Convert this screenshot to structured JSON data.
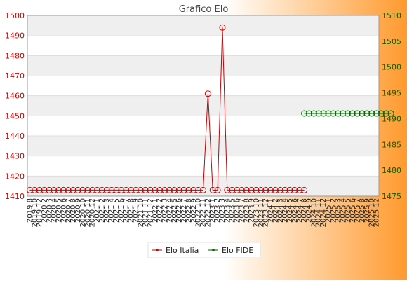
{
  "chart_data": {
    "type": "line",
    "title": "Grafico Elo",
    "x_labels": [
      "2019 8",
      "2019 10",
      "2019 12",
      "2020 2",
      "2020 3",
      "2020 4",
      "2020 5",
      "2020 6",
      "2020 7",
      "2020 8",
      "2020 9",
      "2020 10",
      "2020 11",
      "2020 12",
      "2021 1",
      "2021 2",
      "2021 3",
      "2021 4",
      "2021 5",
      "2021 6",
      "2021 7",
      "2021 8",
      "2021 9",
      "2021 10",
      "2021 11",
      "2021 12",
      "2022 1",
      "2022 2",
      "2022 3",
      "2022 4",
      "2022 5",
      "2022 6",
      "2022 7",
      "2022 8",
      "2022 9",
      "2022 10",
      "2022 11",
      "2022 12",
      "2023 1",
      "2023 2",
      "2023 3",
      "2023 4",
      "2023 5",
      "2023 6",
      "2023 7",
      "2023 8",
      "2023 9",
      "2023 10",
      "2023 11",
      "2023 12",
      "2024 1",
      "2024 2",
      "2024 3",
      "2024 4",
      "2024 5",
      "2024 6",
      "2024 7",
      "2024 8",
      "2024 9",
      "2024 10",
      "2024 11",
      "2024 12",
      "2025 1",
      "2025 2",
      "2025 3",
      "2025 4",
      "2025 5",
      "2025 6",
      "2025 7",
      "2025 8",
      "2025 9",
      "2025 10",
      "2025 12"
    ],
    "y_left": {
      "min": 1410,
      "max": 1500,
      "ticks": [
        1410,
        1420,
        1430,
        1440,
        1450,
        1460,
        1470,
        1480,
        1490,
        1500
      ],
      "color": "#cc0000"
    },
    "y_right": {
      "min": 1475,
      "max": 1510,
      "ticks": [
        1475,
        1480,
        1485,
        1490,
        1495,
        1500,
        1505,
        1510
      ],
      "color": "#006600"
    },
    "series": [
      {
        "name": "Elo Italia",
        "axis": "left",
        "color": "#cc0000",
        "values": [
          1413,
          1413,
          1413,
          1413,
          1413,
          1413,
          1413,
          1413,
          1413,
          1413,
          1413,
          1413,
          1413,
          1413,
          1413,
          1413,
          1413,
          1413,
          1413,
          1413,
          1413,
          1413,
          1413,
          1413,
          1413,
          1413,
          1413,
          1413,
          1413,
          1413,
          1413,
          1413,
          1413,
          1413,
          1413,
          1413,
          1413,
          1461,
          1413,
          1413,
          1494,
          1413,
          1413,
          1413,
          1413,
          1413,
          1413,
          1413,
          1413,
          1413,
          1413,
          1413,
          1413,
          1413,
          1413,
          1413,
          1413,
          1413,
          null,
          null,
          null,
          null,
          null,
          null,
          null,
          null,
          null,
          null,
          null,
          null,
          null,
          null,
          null
        ]
      },
      {
        "name": "Elo FIDE",
        "axis": "right",
        "color": "#006600",
        "values": [
          null,
          null,
          null,
          null,
          null,
          null,
          null,
          null,
          null,
          null,
          null,
          null,
          null,
          null,
          null,
          null,
          null,
          null,
          null,
          null,
          null,
          null,
          null,
          null,
          null,
          null,
          null,
          null,
          null,
          null,
          null,
          null,
          null,
          null,
          null,
          null,
          null,
          null,
          null,
          null,
          null,
          null,
          null,
          null,
          null,
          null,
          null,
          null,
          null,
          null,
          null,
          null,
          null,
          null,
          null,
          null,
          null,
          1491,
          1491,
          1491,
          1491,
          1491,
          1491,
          1491,
          1491,
          1491,
          1491,
          1491,
          1491,
          1491,
          1491,
          1491,
          1491,
          1491,
          1491,
          1491
        ]
      }
    ],
    "grid": true,
    "legend": "bottom-center"
  }
}
